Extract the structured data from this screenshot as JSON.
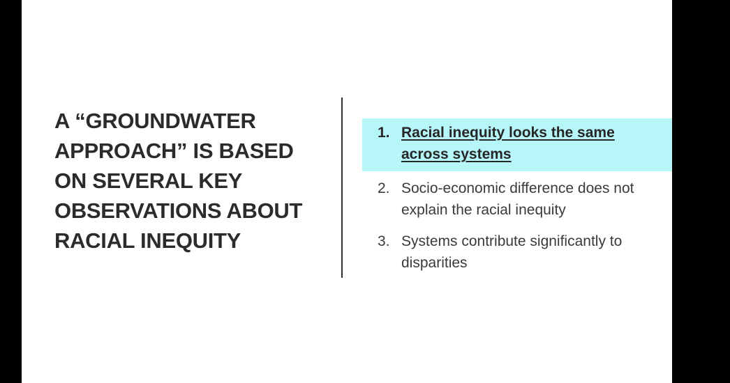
{
  "slide": {
    "title": "A “GROUNDWATER APPROACH” IS BASED ON SEVERAL KEY OBSERVATIONS ABOUT RACIAL INEQUITY",
    "observations": [
      {
        "number": "1.",
        "text": "Racial inequity looks the same across systems",
        "highlighted": true
      },
      {
        "number": "2.",
        "text": "Socio-economic difference does not explain the racial inequity",
        "highlighted": false
      },
      {
        "number": "3.",
        "text": "Systems contribute significantly to disparities",
        "highlighted": false
      }
    ]
  },
  "colors": {
    "letterbox": "#000000",
    "slide_background": "#ffffff",
    "highlight": "#b7f6f8",
    "title_text": "#2b2b2b",
    "body_text": "#3a3a3a"
  }
}
